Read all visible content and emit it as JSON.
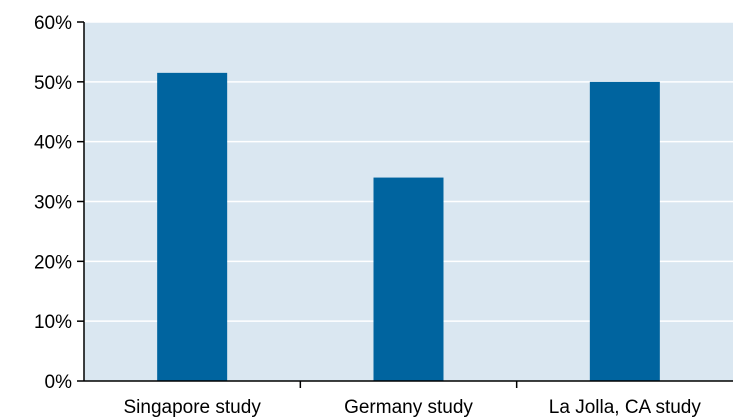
{
  "chart_data": {
    "type": "bar",
    "title": "",
    "xlabel": "",
    "ylabel": "",
    "categories": [
      "Singapore study",
      "Germany study",
      "La Jolla, CA study"
    ],
    "values": [
      51.5,
      34,
      50
    ],
    "ylim": [
      0,
      60
    ],
    "yticks": [
      0,
      10,
      20,
      30,
      40,
      50,
      60
    ],
    "ytick_labels": [
      "0%",
      "10%",
      "20%",
      "30%",
      "40%",
      "50%",
      "60%"
    ],
    "grid": true,
    "colors": {
      "bar": "#00649f",
      "plot_background": "#dae7f1",
      "gridline": "#ffffff",
      "axis": "#000000"
    }
  }
}
